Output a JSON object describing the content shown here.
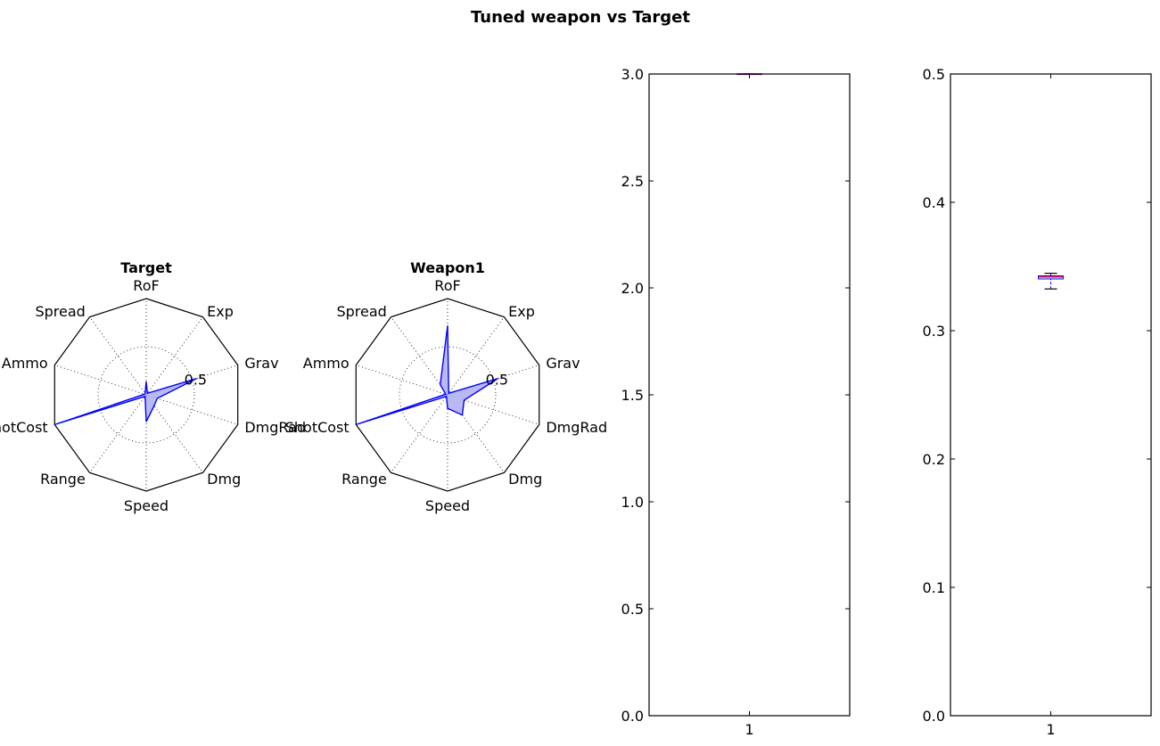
{
  "figure": {
    "title": "Tuned weapon vs Target"
  },
  "colors": {
    "series": "#0000ff",
    "fill": "#b3b3f2",
    "median": "#ff0000",
    "axis": "#000000"
  },
  "chart_data": [
    {
      "type": "radar",
      "title": "Target",
      "axes": [
        "RoF",
        "Exp",
        "Grav",
        "DmgRad",
        "Dmg",
        "Speed",
        "Range",
        "ShotCost",
        "Ammo",
        "Spread"
      ],
      "rmax": 1.0,
      "ring_label": "0.5",
      "grid": true,
      "values": [
        0.14,
        0.02,
        0.55,
        0.12,
        0.14,
        0.28,
        0.02,
        1.0,
        0.02,
        0.02
      ]
    },
    {
      "type": "radar",
      "title": "Weapon1",
      "axes": [
        "RoF",
        "Exp",
        "Grav",
        "DmgRad",
        "Dmg",
        "Speed",
        "Range",
        "ShotCost",
        "Ammo",
        "Spread"
      ],
      "rmax": 1.0,
      "ring_label": "0.5",
      "grid": true,
      "values": [
        0.72,
        0.02,
        0.55,
        0.18,
        0.26,
        0.14,
        0.02,
        1.0,
        0.02,
        0.13
      ]
    },
    {
      "type": "box",
      "title": "",
      "categories": [
        "1"
      ],
      "ylim": [
        0.0,
        3.0
      ],
      "yticks": [
        "0.0",
        "0.5",
        "1.0",
        "1.5",
        "2.0",
        "2.5",
        "3.0"
      ],
      "box": {
        "whisker_low": 3.0,
        "q1": 3.0,
        "median": 3.0,
        "q3": 3.0,
        "whisker_high": 3.0
      }
    },
    {
      "type": "box",
      "title": "",
      "categories": [
        "1"
      ],
      "ylim": [
        0.0,
        0.5
      ],
      "yticks": [
        "0.0",
        "0.1",
        "0.2",
        "0.3",
        "0.4",
        "0.5"
      ],
      "box": {
        "whisker_low": 0.3325,
        "q1": 0.3403,
        "median": 0.3418,
        "q3": 0.3427,
        "whisker_high": 0.3447
      }
    }
  ]
}
